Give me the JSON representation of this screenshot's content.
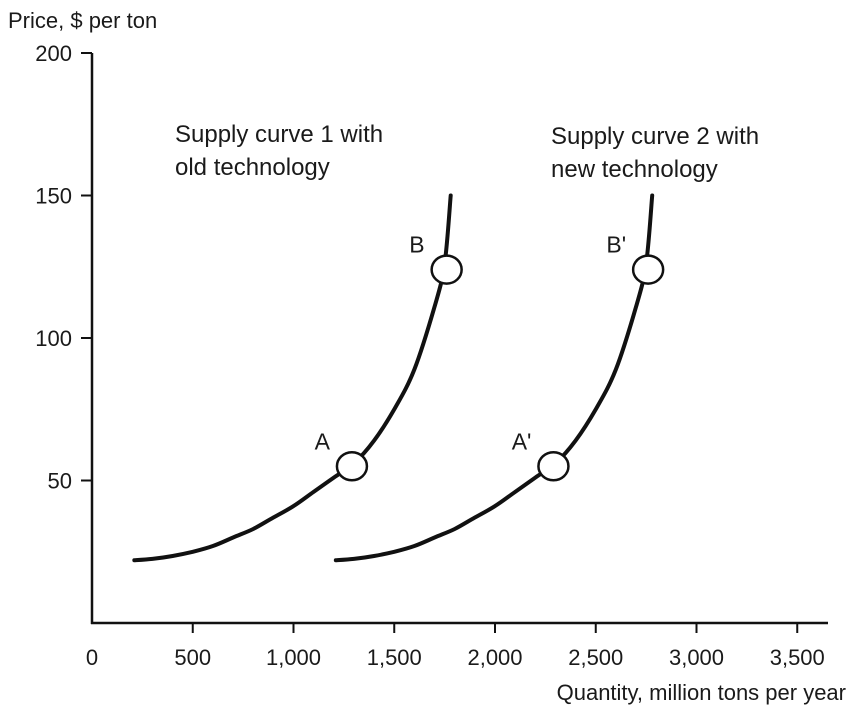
{
  "chart_data": {
    "type": "line",
    "ylabel": "Price, $ per ton",
    "xlabel": "Quantity, million tons per year",
    "xlim": [
      0,
      3600
    ],
    "ylim": [
      0,
      200
    ],
    "x_ticks": [
      0,
      500,
      1000,
      1500,
      2000,
      2500,
      3000,
      3500
    ],
    "x_tick_labels": [
      "0",
      "500",
      "1,000",
      "1,500",
      "2,000",
      "2,500",
      "3,000",
      "3,500"
    ],
    "y_ticks": [
      50,
      100,
      150,
      200
    ],
    "y_tick_labels": [
      "50",
      "100",
      "150",
      "200"
    ],
    "grid": false,
    "legend": "none",
    "series": [
      {
        "name": "Supply curve 1 with old technology",
        "label_lines": [
          "Supply curve 1 with",
          "old technology"
        ],
        "x": [
          210,
          300,
          400,
          500,
          600,
          700,
          800,
          900,
          1000,
          1100,
          1200,
          1300,
          1400,
          1500,
          1600,
          1700,
          1750,
          1780
        ],
        "y": [
          22,
          22.5,
          23.5,
          25,
          27,
          30,
          33,
          37,
          41,
          46,
          51,
          56,
          64,
          75,
          89,
          111,
          126,
          150
        ]
      },
      {
        "name": "Supply curve 2 with new technology",
        "label_lines": [
          "Supply curve 2 with",
          "new technology"
        ],
        "x": [
          1210,
          1300,
          1400,
          1500,
          1600,
          1700,
          1800,
          1900,
          2000,
          2100,
          2200,
          2300,
          2400,
          2500,
          2600,
          2700,
          2750,
          2780
        ],
        "y": [
          22,
          22.5,
          23.5,
          25,
          27,
          30,
          33,
          37,
          41,
          46,
          51,
          56,
          64,
          75,
          89,
          111,
          126,
          150
        ]
      }
    ],
    "points": [
      {
        "label": "A",
        "x": 1290,
        "y": 55
      },
      {
        "label": "B",
        "x": 1760,
        "y": 124
      },
      {
        "label": "A'",
        "x": 2290,
        "y": 55
      },
      {
        "label": "B'",
        "x": 2760,
        "y": 124
      }
    ]
  }
}
